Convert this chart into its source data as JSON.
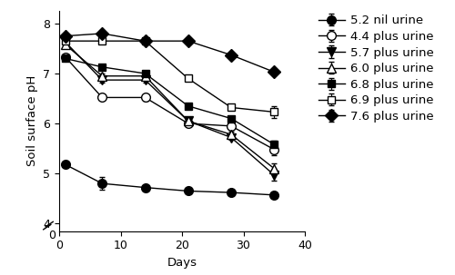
{
  "title": "",
  "xlabel": "Days",
  "ylabel": "Soil surface pH",
  "days": [
    1,
    7,
    14,
    21,
    28,
    35
  ],
  "series": [
    {
      "label": "5.2 nil urine",
      "y": [
        5.18,
        4.8,
        4.72,
        4.65,
        4.62,
        4.57
      ],
      "yerr": [
        0.05,
        0.13,
        0.05,
        0.05,
        0.05,
        0.05
      ],
      "marker": "o",
      "fillstyle": "full",
      "markersize": 7
    },
    {
      "label": "4.4 plus urine",
      "y": [
        7.33,
        6.52,
        6.52,
        6.0,
        5.95,
        5.48
      ],
      "yerr": [
        0.05,
        0.05,
        0.07,
        0.05,
        0.05,
        0.12
      ],
      "marker": "o",
      "fillstyle": "none",
      "markersize": 7
    },
    {
      "label": "5.7 plus urine",
      "y": [
        7.63,
        6.87,
        6.87,
        6.05,
        5.72,
        4.97
      ],
      "yerr": [
        0.05,
        0.05,
        0.05,
        0.05,
        0.05,
        0.12
      ],
      "marker": "v",
      "fillstyle": "full",
      "markersize": 7
    },
    {
      "label": "6.0 plus urine",
      "y": [
        7.58,
        6.95,
        6.95,
        6.05,
        5.78,
        5.1
      ],
      "yerr": [
        0.05,
        0.05,
        0.05,
        0.05,
        0.05,
        0.1
      ],
      "marker": "^",
      "fillstyle": "none",
      "markersize": 7
    },
    {
      "label": "6.8 plus urine",
      "y": [
        7.3,
        7.13,
        7.0,
        6.35,
        6.1,
        5.58
      ],
      "yerr": [
        0.05,
        0.05,
        0.05,
        0.05,
        0.05,
        0.08
      ],
      "marker": "s",
      "fillstyle": "full",
      "markersize": 6
    },
    {
      "label": "6.9 plus urine",
      "y": [
        7.65,
        7.65,
        7.65,
        6.9,
        6.32,
        6.23
      ],
      "yerr": [
        0.05,
        0.05,
        0.05,
        0.05,
        0.05,
        0.12
      ],
      "marker": "s",
      "fillstyle": "none",
      "markersize": 6
    },
    {
      "label": "7.6 plus urine",
      "y": [
        7.75,
        7.8,
        7.65,
        7.65,
        7.37,
        7.03
      ],
      "yerr": [
        0.04,
        0.04,
        0.04,
        0.04,
        0.04,
        0.04
      ],
      "marker": "D",
      "fillstyle": "full",
      "markersize": 7
    }
  ],
  "xlim": [
    0,
    40
  ],
  "ylim_main": [
    3.85,
    8.25
  ],
  "yticks_main": [
    4,
    5,
    6,
    7,
    8
  ],
  "xticks": [
    0,
    10,
    20,
    30,
    40
  ],
  "line_color": "black",
  "line_width": 1.0,
  "legend_fontsize": 9.5,
  "axis_fontsize": 9.5,
  "tick_fontsize": 9
}
